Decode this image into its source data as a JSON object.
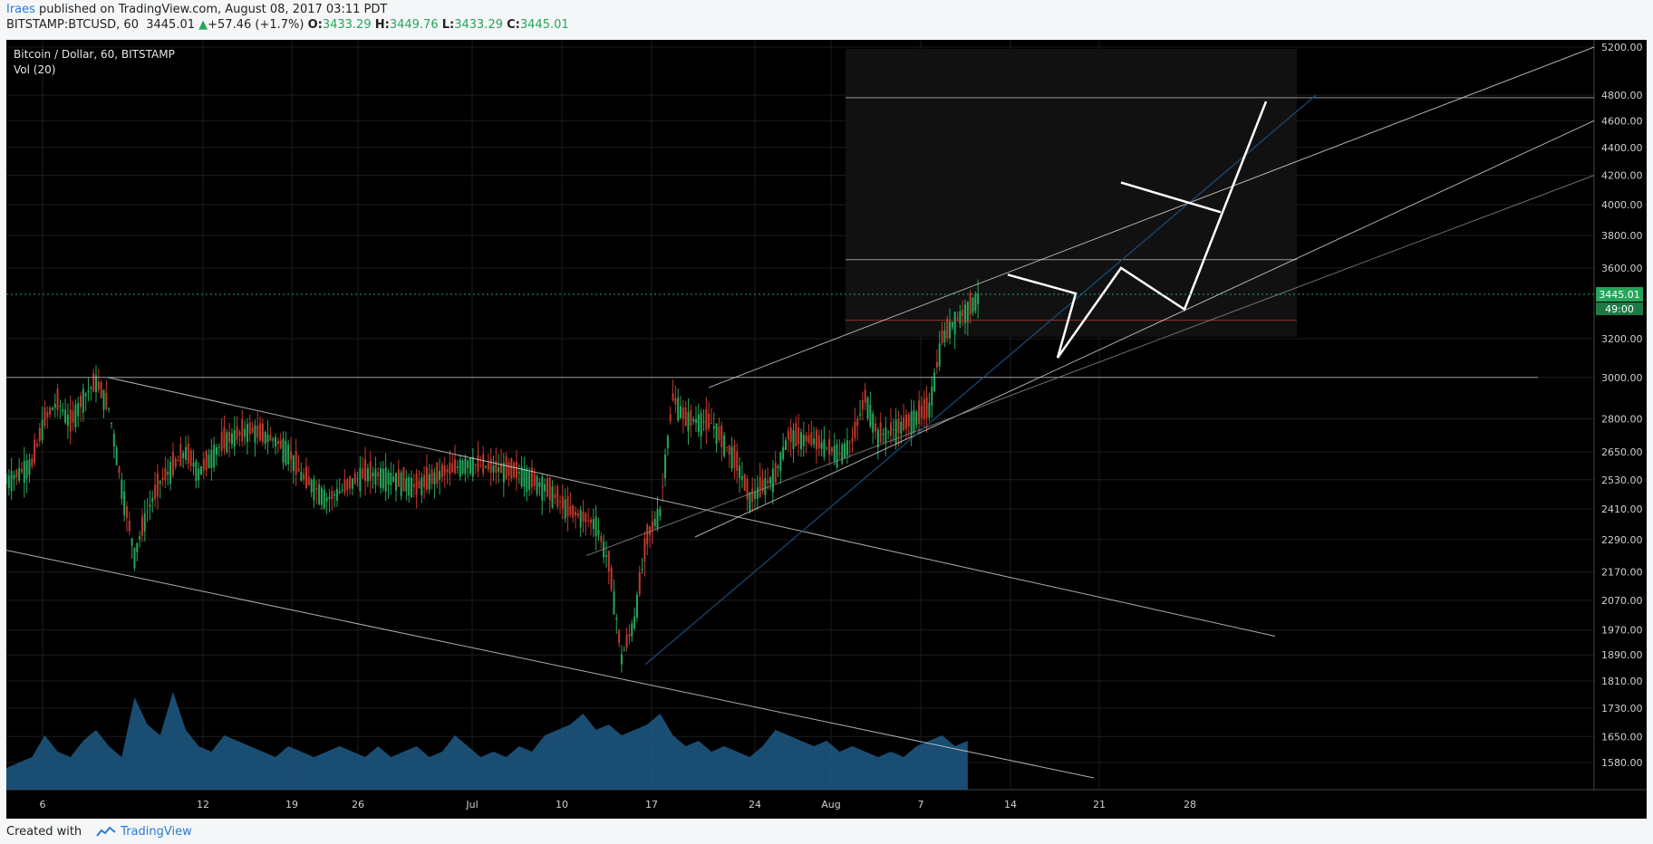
{
  "header": {
    "author": "Iraes",
    "published_text": " published on TradingView.com, August 08, 2017 03:11 PDT",
    "symbol": "BITSTAMP:BTCUSD, 60",
    "last": "3445.01",
    "change": "+57.46 (+1.7%)",
    "open_label": "O:",
    "open": "3433.29",
    "high_label": "H:",
    "high": "3449.76",
    "low_label": "L:",
    "low": "3433.29",
    "close_label": "C:",
    "close": "3445.01"
  },
  "legend": {
    "title": "Bitcoin / Dollar, 60, BITSTAMP",
    "indicator": "Vol (20)"
  },
  "footer": {
    "created_with": "Created with",
    "brand": "TradingView"
  },
  "colors": {
    "background": "#000000",
    "grid": "#1d1d1d",
    "up_candle": "#26a65b",
    "down_candle": "#c0392b",
    "drawing": "#d9d9d9",
    "volume": "#1f5b86",
    "last_price_badge": "#26a65b",
    "trend_blue": "#1e4f7a",
    "support_red": "#c0392b"
  },
  "chart_data": {
    "type": "candlestick",
    "symbol": "BITSTAMP:BTCUSD",
    "interval": "60",
    "scale": "log",
    "y_tick_labels": [
      "5200.00",
      "4800.00",
      "4600.00",
      "4400.00",
      "4200.00",
      "4000.00",
      "3800.00",
      "3600.00",
      "3200.00",
      "3000.00",
      "2800.00",
      "2650.00",
      "2530.00",
      "2410.00",
      "2290.00",
      "2170.00",
      "2070.00",
      "1970.00",
      "1890.00",
      "1810.00",
      "1730.00",
      "1650.00",
      "1580.00"
    ],
    "x_tick_labels": [
      "6",
      "12",
      "19",
      "26",
      "Jul",
      "10",
      "17",
      "24",
      "Aug",
      "7",
      "14",
      "21",
      "28"
    ],
    "last_price": {
      "label": "3445.01",
      "value": 3445.01
    },
    "secondary_badge": "49:00",
    "price_path": [
      [
        0,
        2520
      ],
      [
        2,
        2600
      ],
      [
        3,
        2800
      ],
      [
        4,
        2880
      ],
      [
        5,
        2780
      ],
      [
        6,
        2900
      ],
      [
        7,
        2980
      ],
      [
        8,
        2850
      ],
      [
        9,
        2500
      ],
      [
        10,
        2230
      ],
      [
        11,
        2400
      ],
      [
        12,
        2520
      ],
      [
        14,
        2650
      ],
      [
        15,
        2560
      ],
      [
        17,
        2700
      ],
      [
        19,
        2750
      ],
      [
        21,
        2700
      ],
      [
        22,
        2650
      ],
      [
        23,
        2550
      ],
      [
        25,
        2450
      ],
      [
        26,
        2480
      ],
      [
        28,
        2560
      ],
      [
        30,
        2540
      ],
      [
        32,
        2500
      ],
      [
        34,
        2560
      ],
      [
        36,
        2600
      ],
      [
        38,
        2580
      ],
      [
        40,
        2560
      ],
      [
        42,
        2500
      ],
      [
        44,
        2400
      ],
      [
        46,
        2350
      ],
      [
        47,
        2200
      ],
      [
        48,
        1880
      ],
      [
        49,
        2000
      ],
      [
        50,
        2300
      ],
      [
        51,
        2400
      ],
      [
        52,
        2900
      ],
      [
        53,
        2800
      ],
      [
        55,
        2780
      ],
      [
        57,
        2600
      ],
      [
        58,
        2450
      ],
      [
        60,
        2550
      ],
      [
        61,
        2720
      ],
      [
        63,
        2700
      ],
      [
        65,
        2640
      ],
      [
        66,
        2700
      ],
      [
        67,
        2900
      ],
      [
        68,
        2720
      ],
      [
        70,
        2770
      ],
      [
        72,
        2850
      ],
      [
        73,
        3200
      ],
      [
        74,
        3300
      ],
      [
        75,
        3360
      ],
      [
        76,
        3445
      ]
    ],
    "volume_profile": [
      0.2,
      0.25,
      0.3,
      0.5,
      0.35,
      0.3,
      0.45,
      0.55,
      0.4,
      0.3,
      0.85,
      0.6,
      0.5,
      0.9,
      0.55,
      0.4,
      0.35,
      0.5,
      0.45,
      0.4,
      0.35,
      0.3,
      0.4,
      0.35,
      0.3,
      0.35,
      0.4,
      0.35,
      0.3,
      0.4,
      0.3,
      0.35,
      0.4,
      0.3,
      0.35,
      0.5,
      0.4,
      0.3,
      0.35,
      0.3,
      0.4,
      0.35,
      0.5,
      0.55,
      0.6,
      0.7,
      0.55,
      0.6,
      0.5,
      0.55,
      0.6,
      0.7,
      0.5,
      0.4,
      0.45,
      0.35,
      0.4,
      0.35,
      0.3,
      0.4,
      0.55,
      0.5,
      0.45,
      0.4,
      0.45,
      0.35,
      0.4,
      0.35,
      0.3,
      0.35,
      0.3,
      0.4,
      0.45,
      0.5,
      0.4,
      0.45
    ]
  }
}
